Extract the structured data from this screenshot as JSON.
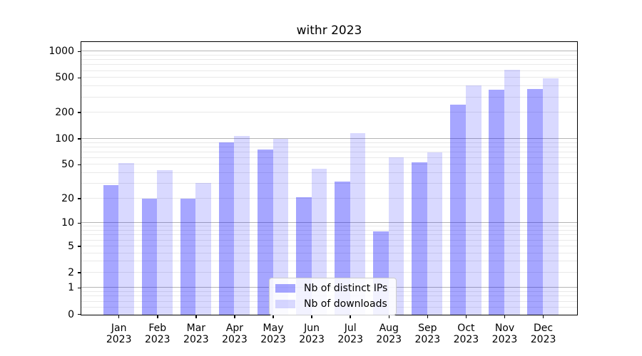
{
  "chart_data": {
    "type": "bar",
    "title": "withr 2023",
    "categories": [
      "Jan",
      "Feb",
      "Mar",
      "Apr",
      "May",
      "Jun",
      "Jul",
      "Aug",
      "Sep",
      "Oct",
      "Nov",
      "Dec"
    ],
    "x_tick_year": "2023",
    "series": [
      {
        "name": "Nb of distinct IPs",
        "color": "rgba(0,0,255,0.35)",
        "values": [
          29,
          20,
          20,
          91,
          76,
          21,
          32,
          8,
          54,
          250,
          370,
          380
        ]
      },
      {
        "name": "Nb of downloads",
        "color": "rgba(0,0,255,0.15)",
        "values": [
          53,
          44,
          31,
          108,
          100,
          45,
          117,
          62,
          70,
          415,
          620,
          498
        ]
      }
    ],
    "y_axis": {
      "tick_values": [
        0,
        1,
        2,
        5,
        10,
        20,
        50,
        100,
        200,
        500,
        1000
      ],
      "tick_labels": [
        "0",
        "1",
        "2",
        "5",
        "10",
        "20",
        "50",
        "100",
        "200",
        "500",
        "1000"
      ],
      "major_gridlines": [
        1,
        10,
        100,
        1000
      ],
      "minor_gridlines": [
        0.2,
        0.4,
        0.6,
        0.8,
        2,
        3,
        4,
        5,
        6,
        7,
        8,
        9,
        20,
        30,
        40,
        50,
        60,
        70,
        80,
        90,
        200,
        300,
        400,
        500,
        600,
        700,
        800,
        900
      ],
      "scale": "log10(1+v)",
      "ylim": [
        0,
        1274
      ]
    },
    "xlabel": "",
    "ylabel": "",
    "grid": true,
    "legend": {
      "labels": [
        "Nb of distinct IPs",
        "Nb of downloads"
      ],
      "position": "lower center"
    },
    "colors": {
      "bar_distinct_ips": "rgba(0,0,255,0.35)",
      "bar_downloads": "rgba(0,0,255,0.15)",
      "major_grid": "#b5b5b5",
      "minor_grid": "#e9e9e9",
      "axis": "#000000",
      "background": "#ffffff"
    }
  }
}
